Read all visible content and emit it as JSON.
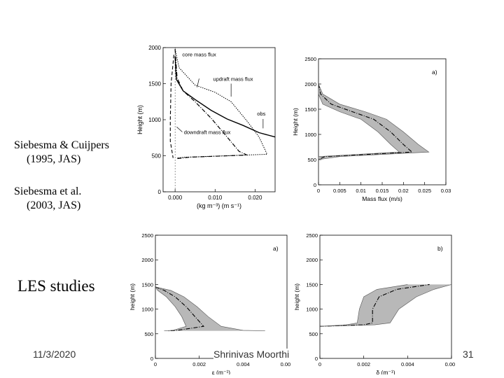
{
  "slide": {
    "labels": {
      "ref1_line1": "Siebesma & Cuijpers",
      "ref1_line2": "(1995, JAS)",
      "ref2_line1": "Siebesma et al.",
      "ref2_line2": "(2003, JAS)",
      "les": "LES studies"
    },
    "footer": {
      "date": "11/3/2020",
      "author": "Shrinivas Moorthi",
      "page": "31"
    }
  },
  "chart_data": [
    {
      "type": "line",
      "title": "",
      "ylabel": "Height (m)",
      "xlabel": "(kg m⁻³) (m s⁻¹)",
      "ylim": [
        0,
        2000
      ],
      "xlim": [
        -0.003,
        0.025
      ],
      "yticks": [
        "0",
        "500",
        "1000",
        "1500",
        "2000"
      ],
      "xticks": [
        "0.000",
        "0.010",
        "0.020"
      ],
      "annotations": [
        "core mass flux",
        "updraft mass flux",
        "obs",
        "downdraft mass flux"
      ],
      "series": [
        {
          "name": "core mass flux",
          "x": [
            0,
            0.0005,
            0.002,
            0.005,
            0.009,
            0.013,
            0.016,
            0.018,
            0.0035,
            0.0005
          ],
          "y": [
            1980,
            1580,
            1400,
            1250,
            1020,
            760,
            560,
            510,
            480,
            460
          ]
        },
        {
          "name": "updraft mass flux",
          "x": [
            0,
            0.001,
            0.005,
            0.01,
            0.014,
            0.018,
            0.021,
            0.023,
            0.0025,
            0.0005
          ],
          "y": [
            1980,
            1720,
            1480,
            1380,
            1250,
            980,
            760,
            520,
            480,
            470
          ]
        },
        {
          "name": "obs",
          "x": [
            0,
            0.0003,
            0.002,
            0.005,
            0.009,
            0.013,
            0.017,
            0.021,
            0.025
          ],
          "y": [
            1880,
            1560,
            1400,
            1280,
            1130,
            1010,
            920,
            820,
            760
          ]
        },
        {
          "name": "downdraft mass flux",
          "x": [
            -0.0003,
            -0.001,
            -0.0012,
            -0.0012,
            -0.0005
          ],
          "y": [
            1900,
            1500,
            1000,
            700,
            470
          ]
        }
      ]
    },
    {
      "type": "area",
      "panel_label": "a)",
      "ylabel": "Height (m)",
      "xlabel": "Mass flux (m/s)",
      "ylim": [
        0,
        2500
      ],
      "xlim": [
        0,
        0.03
      ],
      "yticks": [
        "0",
        "500",
        "1000",
        "1500",
        "2000",
        "2500"
      ],
      "xticks": [
        "0",
        "0.005",
        "0.01",
        "0.015",
        "0.02",
        "0.025",
        "0.03"
      ],
      "series": [
        {
          "name": "mean",
          "x": [
            0,
            0.0005,
            0.003,
            0.008,
            0.013,
            0.017,
            0.02,
            0.022,
            0.0015,
            0
          ],
          "y": [
            2000,
            1800,
            1600,
            1450,
            1300,
            1050,
            800,
            650,
            560,
            500
          ]
        },
        {
          "name": "upper bound",
          "x": [
            0,
            0.001,
            0.005,
            0.011,
            0.016,
            0.02,
            0.0235,
            0.026,
            0.005,
            0
          ],
          "y": [
            2000,
            1800,
            1600,
            1450,
            1300,
            1050,
            800,
            650,
            560,
            500
          ]
        },
        {
          "name": "lower bound",
          "x": [
            0,
            0,
            0.001,
            0.005,
            0.01,
            0.014,
            0.017,
            0.019,
            0,
            0
          ],
          "y": [
            2000,
            1800,
            1600,
            1450,
            1300,
            1050,
            800,
            650,
            560,
            500
          ]
        }
      ]
    },
    {
      "type": "area",
      "panel_label": "a)",
      "ylabel": "height (m)",
      "xlabel": "ε (m⁻¹)",
      "ylim": [
        0,
        2500
      ],
      "xlim": [
        0,
        0.006
      ],
      "yticks": [
        "0",
        "500",
        "1000",
        "1500",
        "2000",
        "2500"
      ],
      "xticks": [
        "0",
        "0.002",
        "0.004",
        "0.006"
      ],
      "series": [
        {
          "name": "mean",
          "x": [
            0,
            0.0004,
            0.0009,
            0.0014,
            0.0018,
            0.0022,
            0.001,
            0.0006
          ],
          "y": [
            1450,
            1380,
            1250,
            1050,
            850,
            650,
            570,
            560
          ]
        },
        {
          "name": "upper bound",
          "x": [
            0,
            0.0007,
            0.0013,
            0.0019,
            0.0024,
            0.003,
            0.004,
            0.005
          ],
          "y": [
            1450,
            1380,
            1250,
            1050,
            850,
            650,
            570,
            560
          ]
        },
        {
          "name": "lower bound",
          "x": [
            0,
            0.0001,
            0.0005,
            0.0009,
            0.0012,
            0.0014,
            0.0008,
            0.0004
          ],
          "y": [
            1450,
            1380,
            1250,
            1050,
            850,
            650,
            570,
            560
          ]
        }
      ]
    },
    {
      "type": "area",
      "panel_label": "b)",
      "ylabel": "height (m)",
      "xlabel": "δ (m⁻¹)",
      "ylim": [
        0,
        2500
      ],
      "xlim": [
        0,
        0.006
      ],
      "yticks": [
        "0",
        "500",
        "1000",
        "1500",
        "2000",
        "2500"
      ],
      "xticks": [
        "0",
        "0.002",
        "0.004",
        "0.006"
      ],
      "series": [
        {
          "name": "mean",
          "x": [
            0,
            0.002,
            0.0024,
            0.0024,
            0.0027,
            0.0035,
            0.005
          ],
          "y": [
            650,
            680,
            720,
            1000,
            1250,
            1400,
            1500
          ]
        },
        {
          "name": "upper bound",
          "x": [
            0,
            0.0025,
            0.0032,
            0.0036,
            0.0044,
            0.0052,
            0.006
          ],
          "y": [
            650,
            680,
            720,
            1000,
            1250,
            1400,
            1500
          ]
        },
        {
          "name": "lower bound",
          "x": [
            0,
            0.0012,
            0.0017,
            0.0018,
            0.002,
            0.0026,
            0.004
          ],
          "y": [
            650,
            680,
            720,
            1000,
            1250,
            1400,
            1500
          ]
        }
      ]
    }
  ]
}
